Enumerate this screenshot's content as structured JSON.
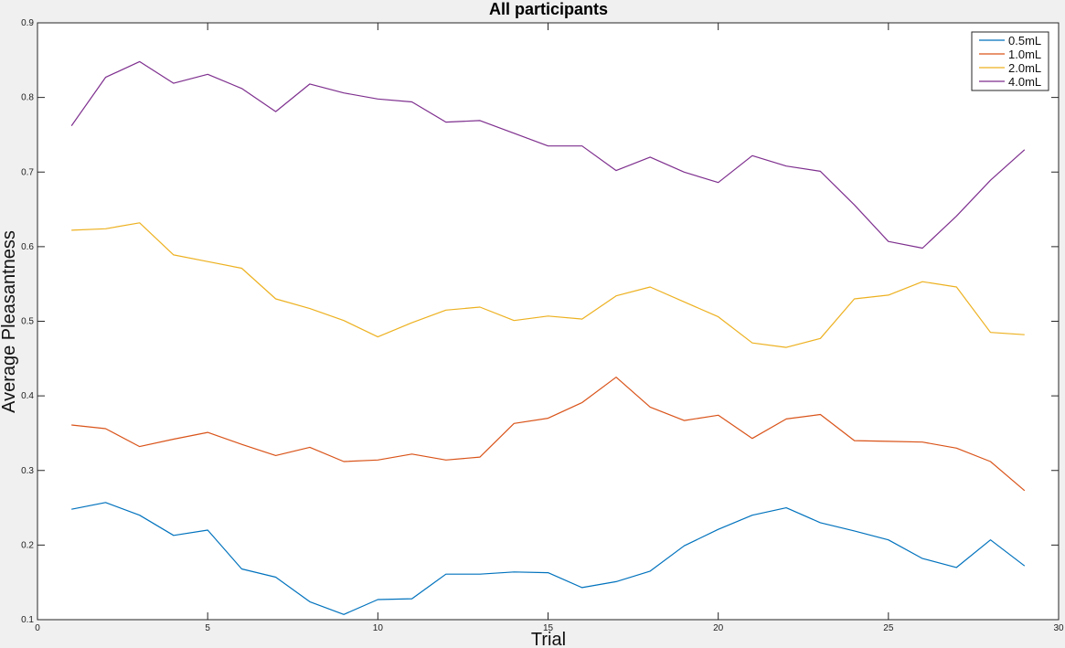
{
  "chart_data": {
    "type": "line",
    "title": "All participants",
    "xlabel": "Trial",
    "ylabel": "Average Pleasantness",
    "xlim": [
      0,
      30
    ],
    "ylim": [
      0.1,
      0.9
    ],
    "xticks": [
      0,
      5,
      10,
      15,
      20,
      25,
      30
    ],
    "yticks": [
      0.1,
      0.2,
      0.3,
      0.4,
      0.5,
      0.6,
      0.7,
      0.8,
      0.9
    ],
    "grid": false,
    "legend_position": "top-right",
    "x": [
      1,
      2,
      3,
      4,
      5,
      6,
      7,
      8,
      9,
      10,
      11,
      12,
      13,
      14,
      15,
      16,
      17,
      18,
      19,
      20,
      21,
      22,
      23,
      24,
      25,
      26,
      27,
      28,
      29
    ],
    "series": [
      {
        "name": "0.5mL",
        "color": "#0072bd",
        "values": [
          0.248,
          0.257,
          0.24,
          0.213,
          0.22,
          0.168,
          0.157,
          0.124,
          0.107,
          0.127,
          0.128,
          0.161,
          0.161,
          0.164,
          0.163,
          0.143,
          0.151,
          0.165,
          0.199,
          0.221,
          0.24,
          0.25,
          0.23,
          0.219,
          0.207,
          0.182,
          0.17,
          0.207,
          0.172
        ]
      },
      {
        "name": "1.0mL",
        "color": "#d95319",
        "values": [
          0.361,
          0.356,
          0.332,
          0.342,
          0.351,
          0.335,
          0.32,
          0.331,
          0.312,
          0.314,
          0.322,
          0.314,
          0.318,
          0.363,
          0.37,
          0.391,
          0.425,
          0.385,
          0.367,
          0.374,
          0.343,
          0.369,
          0.375,
          0.34,
          0.339,
          0.338,
          0.33,
          0.312,
          0.273
        ]
      },
      {
        "name": "2.0mL",
        "color": "#edb120",
        "values": [
          0.622,
          0.624,
          0.632,
          0.589,
          0.58,
          0.571,
          0.53,
          0.517,
          0.501,
          0.479,
          0.498,
          0.515,
          0.519,
          0.501,
          0.507,
          0.503,
          0.534,
          0.546,
          0.526,
          0.506,
          0.471,
          0.465,
          0.477,
          0.53,
          0.535,
          0.553,
          0.546,
          0.485,
          0.482
        ]
      },
      {
        "name": "4.0mL",
        "color": "#7e2f8e",
        "values": [
          0.762,
          0.827,
          0.848,
          0.819,
          0.831,
          0.812,
          0.781,
          0.818,
          0.806,
          0.798,
          0.794,
          0.767,
          0.769,
          0.752,
          0.735,
          0.735,
          0.702,
          0.72,
          0.7,
          0.686,
          0.722,
          0.708,
          0.701,
          0.656,
          0.607,
          0.598,
          0.641,
          0.689,
          0.73
        ]
      }
    ]
  }
}
